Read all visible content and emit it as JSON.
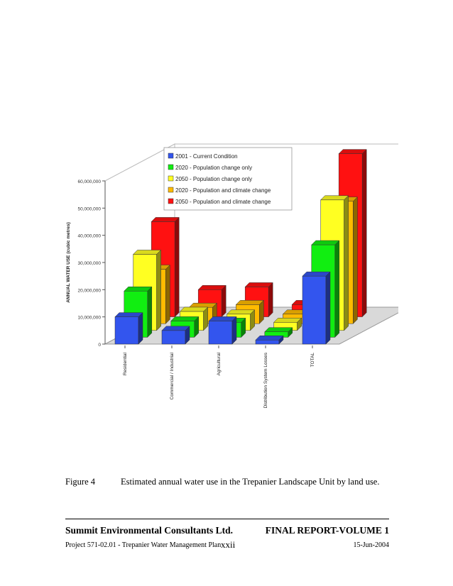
{
  "chart_data": {
    "type": "bar",
    "title": "",
    "ylabel": "ANNUAL WATER USE (cubic metres)",
    "xlabel": "",
    "ylim": [
      0,
      60000000
    ],
    "y_ticks": [
      "0",
      "10,000,000",
      "20,000,000",
      "30,000,000",
      "40,000,000",
      "50,000,000",
      "60,000,000"
    ],
    "y_tick_values": [
      0,
      10000000,
      20000000,
      30000000,
      40000000,
      50000000,
      60000000
    ],
    "categories": [
      "Residential",
      "Commercial / Industrial",
      "Agricultural",
      "Distribution System Losses",
      "TOTAL"
    ],
    "series": [
      {
        "name": "2001 - Current Condition",
        "color": "#3355ee",
        "values": [
          10000000,
          5000000,
          8500000,
          1500000,
          25000000
        ]
      },
      {
        "name": "2020 - Population change only",
        "color": "#11ee11",
        "values": [
          17000000,
          6000000,
          5500000,
          2000000,
          34000000
        ]
      },
      {
        "name": "2050 - Population change only",
        "color": "#ffff22",
        "values": [
          28000000,
          7000000,
          6000000,
          3000000,
          48000000
        ]
      },
      {
        "name": "2020 - Population and climate change",
        "color": "#ffbb00",
        "values": [
          20000000,
          6000000,
          7000000,
          3500000,
          45000000
        ]
      },
      {
        "name": "2050 - Population and climate change",
        "color": "#ff1111",
        "values": [
          35000000,
          10000000,
          11000000,
          4500000,
          60000000
        ]
      }
    ],
    "legend_position": "top-center",
    "grid": false
  },
  "caption": {
    "figure_label": "Figure 4",
    "text": "Estimated annual water use in the Trepanier Landscape Unit by land use."
  },
  "footer": {
    "company": "Summit Environmental Consultants Ltd.",
    "report": "FINAL REPORT-VOLUME 1",
    "project": "Project 571-02.01 - Trepanier Water Management Plan",
    "page": "xxii",
    "date": "15-Jun-2004"
  }
}
